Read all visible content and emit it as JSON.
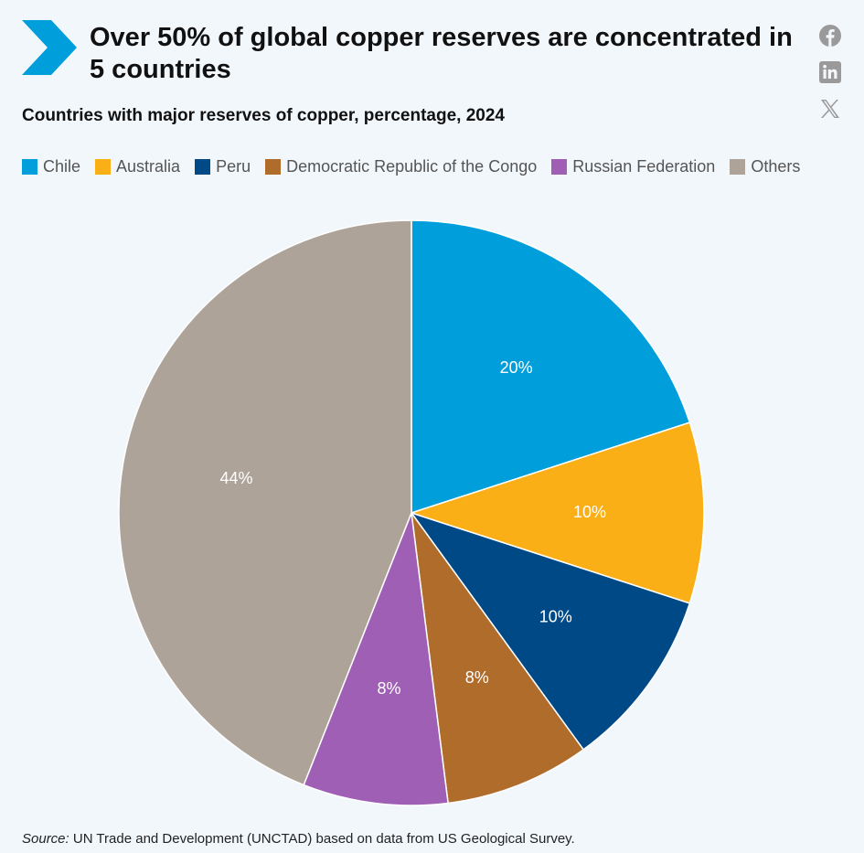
{
  "header": {
    "title": "Over 50% of global copper reserves are concentrated in 5 countries",
    "subtitle": "Countries with major reserves of copper, percentage, 2024"
  },
  "share": {
    "icons": [
      "facebook-icon",
      "linkedin-icon",
      "x-icon"
    ]
  },
  "chart_data": {
    "type": "pie",
    "title": "Over 50% of global copper reserves are concentrated in 5 countries",
    "subtitle": "Countries with major reserves of copper, percentage, 2024",
    "slices": [
      {
        "name": "Chile",
        "value": 20,
        "label": "20%",
        "color": "#009edb"
      },
      {
        "name": "Australia",
        "value": 10,
        "label": "10%",
        "color": "#fbaf17"
      },
      {
        "name": "Peru",
        "value": 10,
        "label": "10%",
        "color": "#004987"
      },
      {
        "name": "Democratic Republic of the Congo",
        "value": 8,
        "label": "8%",
        "color": "#b06c2b"
      },
      {
        "name": "Russian Federation",
        "value": 8,
        "label": "8%",
        "color": "#9e5fb4"
      },
      {
        "name": "Others",
        "value": 44,
        "label": "44%",
        "color": "#aea399"
      }
    ],
    "legend_position": "top-left",
    "start_angle": "12 o'clock",
    "direction": "clockwise"
  },
  "source": {
    "prefix": "Source:",
    "text": " UN Trade and Development (UNCTAD) based on data from US Geological Survey."
  }
}
